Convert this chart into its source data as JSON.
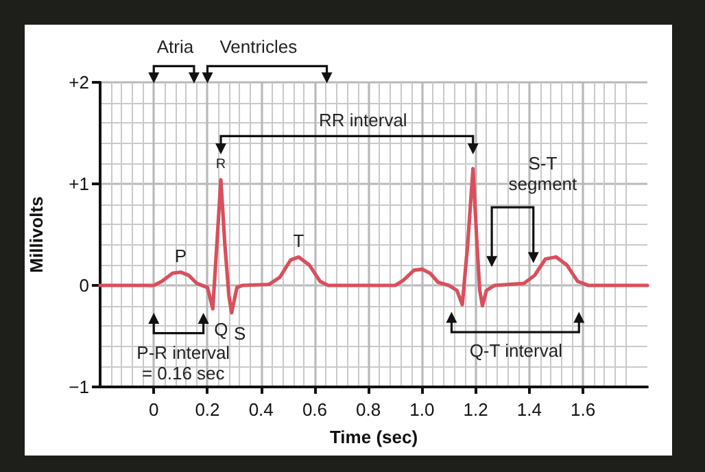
{
  "chart_data": {
    "type": "line",
    "xlabel": "Time (sec)",
    "ylabel": "Millivolts",
    "x": [
      -0.2,
      0,
      0.03,
      0.07,
      0.1,
      0.13,
      0.16,
      0.18,
      0.2,
      0.22,
      0.235,
      0.25,
      0.265,
      0.28,
      0.29,
      0.31,
      0.33,
      0.43,
      0.47,
      0.51,
      0.54,
      0.58,
      0.62,
      0.65,
      0.9,
      0.93,
      0.97,
      1.0,
      1.03,
      1.06,
      1.1,
      1.13,
      1.15,
      1.17,
      1.19,
      1.205,
      1.215,
      1.225,
      1.24,
      1.27,
      1.38,
      1.42,
      1.46,
      1.5,
      1.54,
      1.58,
      1.62,
      1.84
    ],
    "series": [
      {
        "color": "#d94f5c",
        "values": [
          0,
          0,
          0.04,
          0.12,
          0.13,
          0.1,
          0.02,
          0,
          -0.02,
          -0.23,
          0.4,
          1.04,
          0.4,
          -0.1,
          -0.27,
          -0.02,
          0,
          0.01,
          0.08,
          0.25,
          0.28,
          0.2,
          0.04,
          0,
          0,
          0.05,
          0.15,
          0.16,
          0.12,
          0.03,
          0,
          -0.05,
          -0.19,
          0.4,
          1.15,
          0.4,
          -0.05,
          -0.2,
          -0.05,
          0,
          0.02,
          0.1,
          0.26,
          0.28,
          0.2,
          0.04,
          0,
          0
        ]
      }
    ],
    "xlim": [
      -0.2,
      1.84
    ],
    "ylim": [
      -1,
      2
    ],
    "xticks": [
      0,
      0.2,
      0.4,
      0.6,
      0.8,
      {
        "value": 1,
        "label": "1.0"
      },
      1.2,
      1.4,
      1.6
    ],
    "yticks": [
      {
        "value": -1,
        "label": "−1"
      },
      0,
      {
        "value": 1,
        "label": "+1"
      },
      {
        "value": 2,
        "label": "+2"
      }
    ],
    "grid": true,
    "marker": "none",
    "line_style": "solid",
    "annotations": [
      "Atria",
      "Ventricles",
      "RR interval",
      "S-T segment",
      "P-R interval = 0.16 sec",
      "Q-T interval",
      {
        "text": "P",
        "x": 0.1,
        "y": 0.13
      },
      {
        "text": "R",
        "x": 0.25,
        "y": 1.04
      },
      {
        "text": "Q",
        "x": 0.22,
        "y": -0.23
      },
      {
        "text": "S",
        "x": 0.29,
        "y": -0.27
      },
      {
        "text": "T",
        "x": 0.54,
        "y": 0.28
      }
    ]
  }
}
